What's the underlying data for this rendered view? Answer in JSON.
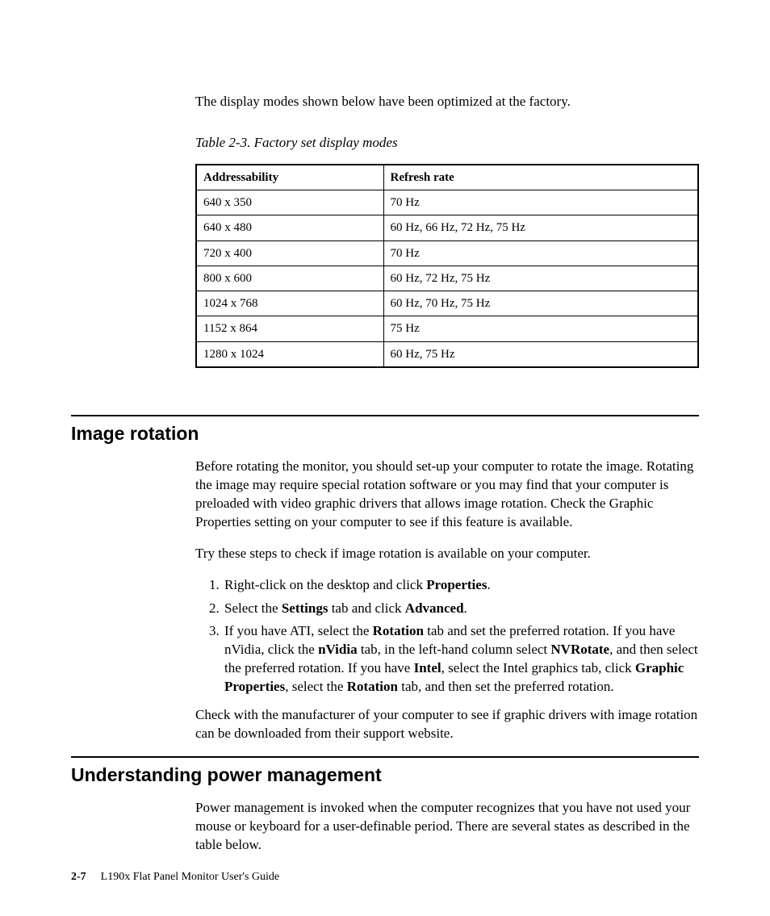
{
  "intro": "The display modes shown below have been optimized at the factory.",
  "table": {
    "caption": "Table 2-3. Factory set display modes",
    "headers": {
      "addr": "Addressability",
      "rate": "Refresh rate"
    },
    "rows": [
      {
        "addr": "640 x 350",
        "rate": "70 Hz"
      },
      {
        "addr": "640 x 480",
        "rate": "60 Hz, 66 Hz, 72 Hz, 75 Hz"
      },
      {
        "addr": "720 x 400",
        "rate": "70 Hz"
      },
      {
        "addr": "800 x 600",
        "rate": "60 Hz, 72 Hz, 75 Hz"
      },
      {
        "addr": "1024 x 768",
        "rate": "60 Hz, 70 Hz, 75 Hz"
      },
      {
        "addr": "1152 x 864",
        "rate": "75 Hz"
      },
      {
        "addr": "1280 x 1024",
        "rate": "60 Hz, 75 Hz"
      }
    ]
  },
  "sec1": {
    "title": "Image rotation",
    "p1": "Before rotating the monitor, you should set-up your computer to rotate the image. Rotating the image may require special rotation software or you may find that your computer is preloaded with video graphic drivers that allows image rotation. Check the Graphic Properties setting on your computer to see if this feature is available.",
    "p2": "Try these steps to check if image rotation is available on your computer.",
    "step1_a": "Right-click on the desktop and click ",
    "step1_b": "Properties",
    "step1_c": ".",
    "step2_a": "Select the ",
    "step2_b": "Settings",
    "step2_c": " tab and click ",
    "step2_d": "Advanced",
    "step2_e": ".",
    "step3_a": "If you have ATI, select the ",
    "step3_b": "Rotation",
    "step3_c": " tab and set the preferred rotation. If you have nVidia, click the ",
    "step3_d": "nVidia",
    "step3_e": " tab, in the left-hand column select ",
    "step3_f": "NVRotate",
    "step3_g": ", and then select the preferred rotation. If you have ",
    "step3_h": "Intel",
    "step3_i": ", select the Intel graphics tab, click ",
    "step3_j": "Graphic Properties",
    "step3_k": ", select the ",
    "step3_l": "Rotation",
    "step3_m": " tab, and then set the preferred rotation.",
    "p3": "Check with the manufacturer of your computer to see if graphic drivers with image rotation can be downloaded from their support website."
  },
  "sec2": {
    "title": "Understanding power management",
    "p1": "Power management is invoked when the computer recognizes that you have not used your mouse or keyboard for a user-definable period. There are several states as described in the table below."
  },
  "footer": {
    "page": "2-7",
    "book": "L190x Flat Panel Monitor User's Guide"
  }
}
